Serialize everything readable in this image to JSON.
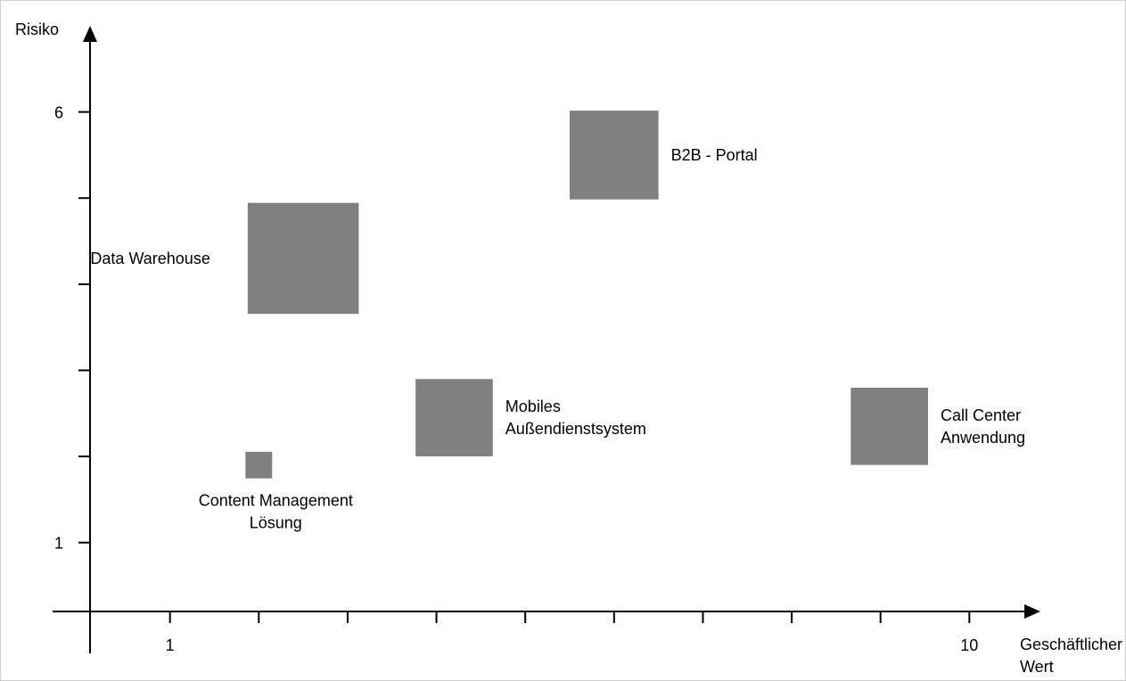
{
  "chart_data": {
    "type": "scatter",
    "title": "",
    "ylabel": "Risiko",
    "xlabel_lines": [
      "Geschäftlicher",
      "Wert"
    ],
    "x_ticks": [
      {
        "value": 1,
        "label": "1"
      },
      {
        "value": 10,
        "label": "10"
      }
    ],
    "x_unlabeled_ticks": [
      2,
      3,
      4,
      5,
      6,
      7,
      8,
      9
    ],
    "y_ticks": [
      {
        "value": 1,
        "label": "1"
      },
      {
        "value": 6,
        "label": "6"
      }
    ],
    "y_unlabeled_ticks": [
      2,
      3,
      4,
      5
    ],
    "xlim": [
      0.1,
      10.8
    ],
    "ylim": [
      0.2,
      7.0
    ],
    "grid": false,
    "legend": "none",
    "marker_color": "#808080",
    "points": [
      {
        "name_lines": [
          "B2B  - Portal"
        ],
        "x": 6.0,
        "y": 5.5,
        "size": 1.0,
        "label_side": "right"
      },
      {
        "name_lines": [
          "Data Warehouse"
        ],
        "x": 2.5,
        "y": 4.3,
        "size": 1.25,
        "label_side": "left"
      },
      {
        "name_lines": [
          "Mobiles",
          "Außendienstsystem"
        ],
        "x": 4.2,
        "y": 2.45,
        "size": 0.87,
        "label_side": "right"
      },
      {
        "name_lines": [
          "Call   Center",
          "Anwendung"
        ],
        "x": 9.1,
        "y": 2.35,
        "size": 0.87,
        "label_side": "right"
      },
      {
        "name_lines": [
          "Content Management",
          "Lösung"
        ],
        "x": 2.0,
        "y": 1.9,
        "size": 0.3,
        "label_side": "below"
      }
    ]
  }
}
